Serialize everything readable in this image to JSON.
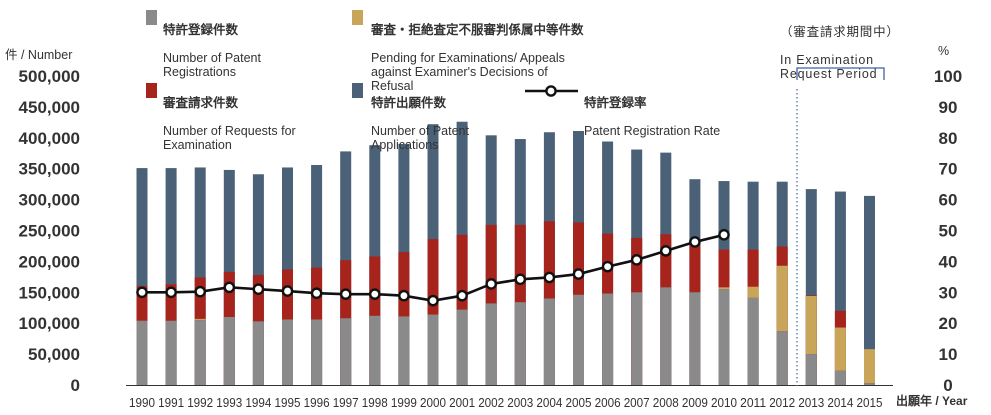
{
  "chart_data": {
    "type": "bar",
    "x_unit_label": "出願年 / Year",
    "y_left_unit_label": "件 / Number",
    "y_right_unit_label": "%",
    "y_left_ticks": [
      "0",
      "50,000",
      "100,000",
      "150,000",
      "200,000",
      "250,000",
      "300,000",
      "350,000",
      "400,000",
      "450,000",
      "500,000"
    ],
    "y_right_ticks": [
      "0",
      "10",
      "20",
      "30",
      "40",
      "50",
      "60",
      "70",
      "80",
      "90",
      "100"
    ],
    "ylim_left": [
      0,
      500000
    ],
    "ylim_right": [
      0,
      100
    ],
    "categories": [
      "1990",
      "1991",
      "1992",
      "1993",
      "1994",
      "1995",
      "1996",
      "1997",
      "1998",
      "1999",
      "2000",
      "2001",
      "2002",
      "2003",
      "2004",
      "2005",
      "2006",
      "2007",
      "2008",
      "2009",
      "2010",
      "2011",
      "2012",
      "2013",
      "2014",
      "2015"
    ],
    "series": [
      {
        "name_ja": "特許登録件数",
        "name_en": "Number of Patent Registrations",
        "color": "#8a8a8a",
        "values": [
          104000,
          104000,
          105000,
          110000,
          103000,
          106000,
          106000,
          108000,
          112000,
          111000,
          114000,
          122000,
          132000,
          134000,
          140000,
          146000,
          148000,
          150000,
          158000,
          150000,
          155000,
          141000,
          87000,
          50000,
          23000,
          3000
        ]
      },
      {
        "name_ja": "審査・拒絶査定不服審判係属中等件数",
        "name_en": "Pending for Examinations/ Appeals against Examiner's Decisions of Refusal",
        "color": "#c9a55a",
        "values": [
          0,
          0,
          2000,
          0,
          0,
          0,
          0,
          0,
          0,
          0,
          0,
          0,
          0,
          0,
          0,
          0,
          0,
          0,
          0,
          0,
          3000,
          18000,
          106000,
          94000,
          70000,
          55000
        ]
      },
      {
        "name_ja": "審査請求件数",
        "name_en": "Number of Requests for Examination",
        "color": "#a7241c",
        "values": [
          160000,
          163000,
          174000,
          183000,
          178000,
          187000,
          190000,
          202000,
          208000,
          215000,
          236000,
          243000,
          259000,
          259000,
          265000,
          263000,
          245000,
          238000,
          244000,
          235000,
          219000,
          219000,
          224000,
          145000,
          120000,
          55000
        ]
      },
      {
        "name_ja": "特許出願件数",
        "name_en": "Number of Patent Applications",
        "color": "#4a6178",
        "values": [
          351000,
          351000,
          352000,
          348000,
          341000,
          352000,
          356000,
          378000,
          388000,
          390000,
          422000,
          426000,
          404000,
          398000,
          409000,
          411000,
          394000,
          381000,
          376000,
          333000,
          330000,
          329000,
          329000,
          317000,
          313000,
          306000
        ]
      }
    ],
    "line": {
      "name_ja": "特許登録率",
      "name_en": "Patent Registration Rate",
      "values": [
        30.0,
        30.0,
        30.2,
        31.6,
        31.0,
        30.4,
        29.7,
        29.4,
        29.4,
        28.9,
        27.3,
        28.9,
        32.7,
        34.2,
        34.8,
        35.9,
        38.3,
        40.5,
        43.4,
        46.3,
        48.6,
        null,
        null,
        null,
        null,
        null
      ]
    },
    "annotation": {
      "ja": "（審査請求期間中）",
      "en": "In Examination\nRequest Period"
    }
  }
}
